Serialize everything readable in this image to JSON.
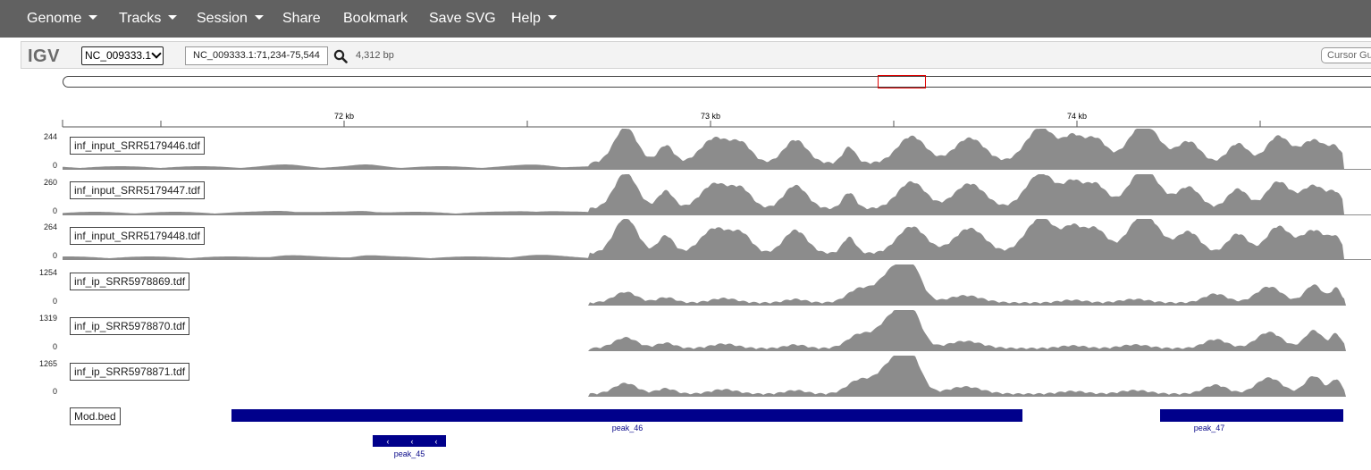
{
  "menu": {
    "genome": "Genome",
    "tracks": "Tracks",
    "session": "Session",
    "share": "Share",
    "bookmark": "Bookmark",
    "save_svg": "Save SVG",
    "help": "Help"
  },
  "navbar": {
    "logo": "IGV",
    "chromosome": "NC_009333.1",
    "locus": "NC_009333.1:71,234-75,544",
    "bp_count": "4,312 bp",
    "cursor_guide": "Cursor Guide"
  },
  "ruler": {
    "ticks": [
      "72 kb",
      "73 kb",
      "74 kb"
    ]
  },
  "tracks": [
    {
      "name": "inf_input_SRR5179446.tdf",
      "max": "244",
      "min": "0",
      "kind": "input"
    },
    {
      "name": "inf_input_SRR5179447.tdf",
      "max": "260",
      "min": "0",
      "kind": "input"
    },
    {
      "name": "inf_input_SRR5179448.tdf",
      "max": "264",
      "min": "0",
      "kind": "input"
    },
    {
      "name": "inf_ip_SRR5978869.tdf",
      "max": "1254",
      "min": "0",
      "kind": "ip"
    },
    {
      "name": "inf_ip_SRR5978870.tdf",
      "max": "1319",
      "min": "0",
      "kind": "ip"
    },
    {
      "name": "inf_ip_SRR5978871.tdf",
      "max": "1265",
      "min": "0",
      "kind": "ip"
    }
  ],
  "bed_track": {
    "name": "Mod.bed",
    "features": [
      "peak_46",
      "peak_47",
      "peak_45"
    ]
  },
  "colors": {
    "topbar": "#616161",
    "coverage": "#8c8c8c",
    "feature": "#00008b",
    "region_box": "#e00000"
  }
}
